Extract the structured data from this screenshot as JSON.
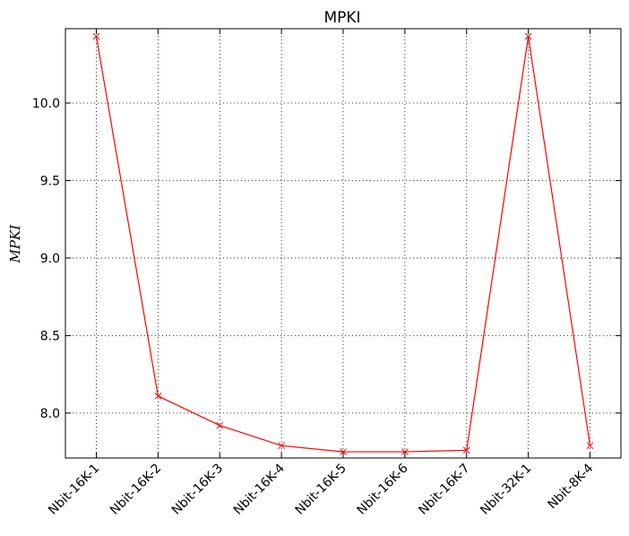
{
  "chart_data": {
    "type": "line",
    "title": "MPKI",
    "xlabel": "",
    "ylabel": "MPKI",
    "categories": [
      "Nbit-16K-1",
      "Nbit-16K-2",
      "Nbit-16K-3",
      "Nbit-16K-4",
      "Nbit-16K-5",
      "Nbit-16K-6",
      "Nbit-16K-7",
      "Nbit-32K-1",
      "Nbit-8K-4"
    ],
    "series": [
      {
        "values": [
          10.43,
          8.11,
          7.92,
          7.79,
          7.75,
          7.75,
          7.76,
          10.43,
          7.79
        ],
        "color": "#ff0000",
        "marker": "x"
      }
    ],
    "ylim": [
      7.71,
      10.48
    ],
    "yticks": [
      "8.0",
      "8.5",
      "9.0",
      "9.5",
      "10.0"
    ],
    "grid": true
  }
}
